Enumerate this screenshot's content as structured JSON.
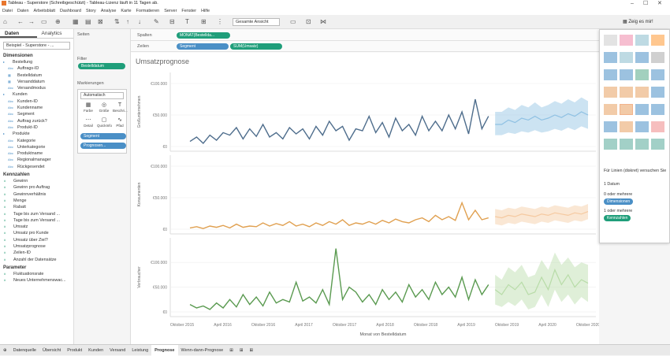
{
  "window": {
    "title": "Tableau - Superstore (Schreibgeschützt) - Tableau-Lizenz läuft in 11 Tagen ab."
  },
  "menu": [
    "Datei",
    "Daten",
    "Arbeitsblatt",
    "Dashboard",
    "Story",
    "Analyse",
    "Karte",
    "Formatieren",
    "Server",
    "Fenster",
    "Hilfe"
  ],
  "toolbar": {
    "view_select": "Gesamte Ansicht",
    "show_me": "Zeig es mir!"
  },
  "left_panel": {
    "tab_data": "Daten",
    "tab_analytics": "Analytics",
    "datasource": "Beispiel - Superstore - ...",
    "dimensions_header": "Dimensionen",
    "dimensions": [
      {
        "type": "folder",
        "label": "Bestellung"
      },
      {
        "type": "abc",
        "label": "Auftrags-ID"
      },
      {
        "type": "date",
        "label": "Bestelldatum"
      },
      {
        "type": "date",
        "label": "Versanddatum"
      },
      {
        "type": "abc",
        "label": "Versandmodus"
      },
      {
        "type": "folder",
        "label": "Kunden"
      },
      {
        "type": "abc",
        "label": "Kunden-ID"
      },
      {
        "type": "abc",
        "label": "Kundenname"
      },
      {
        "type": "abc",
        "label": "Segment"
      },
      {
        "type": "abc",
        "label": "Auftrag zurück?"
      },
      {
        "type": "abc",
        "label": "Produkt-ID"
      },
      {
        "type": "folder",
        "label": "Produkte"
      },
      {
        "type": "abc",
        "label": "Kategorie"
      },
      {
        "type": "abc",
        "label": "Unterkategorie"
      },
      {
        "type": "abc",
        "label": "Produktname"
      },
      {
        "type": "abc",
        "label": "Regionalmanager"
      },
      {
        "type": "abc",
        "label": "Rückgesendet"
      }
    ],
    "measures_header": "Kennzahlen",
    "measures": [
      "Gewinn",
      "Gewinn pro Auftrag",
      "Gewinnverhältnis",
      "Menge",
      "Rabatt",
      "Tage bis zum Versand ...",
      "Tage bis zum Versand ...",
      "Umsatz",
      "Umsatz pro Kunde",
      "Umsatz über Ziel?",
      "Umsatzprognose",
      "Zeilen-ID",
      "Anzahl der Datensätze"
    ],
    "parameters_header": "Parameter",
    "parameters": [
      "Fluktuationsrate",
      "Neues Unternehmenswac..."
    ]
  },
  "cards": {
    "pages": "Seiten",
    "filters": "Filter",
    "filter_pill": "Bestelldatum",
    "marks": "Markierungen",
    "mark_type": "Automatisch",
    "mark_buttons": [
      {
        "glyph": "▦",
        "label": "Farbe"
      },
      {
        "glyph": "◎",
        "label": "Größe"
      },
      {
        "glyph": "T",
        "label": "Beschri..."
      },
      {
        "glyph": "⋯",
        "label": "Detail"
      },
      {
        "glyph": "▢",
        "label": "QuickInfo"
      },
      {
        "glyph": "∿",
        "label": "Pfad"
      }
    ],
    "mark_pill_1": "Segment",
    "mark_pill_2": "Prognosen..."
  },
  "shelves": {
    "columns_label": "Spalten",
    "rows_label": "Zeilen",
    "columns_pill": "MONAT(Bestellda...",
    "rows_pill_1": "Segment",
    "rows_pill_2": "SUM(Umsatz)"
  },
  "viz": {
    "title": "Umsatzprognose",
    "x_title": "Monat von Bestelldatum"
  },
  "chart_data": {
    "type": "line",
    "title": "Umsatzprognose",
    "xlabel": "Monat von Bestelldatum",
    "x_ticks": [
      "Oktober 2015",
      "April 2016",
      "Oktober 2016",
      "April 2017",
      "Oktober 2017",
      "April 2018",
      "Oktober 2018",
      "April 2019",
      "Oktober 2019",
      "April 2020",
      "Oktober 2020"
    ],
    "x_range": [
      "2015-07",
      "2020-12"
    ],
    "panels": [
      {
        "ylabel": "Großunternehmen",
        "y_ticks": [
          "€100.000",
          "€50.000",
          "€0"
        ],
        "ylim": [
          0,
          110000
        ],
        "color": "#4e6d8c",
        "forecast_color": "#8fc1e3",
        "actual": [
          8000,
          15000,
          5000,
          18000,
          10000,
          22000,
          18000,
          30000,
          12000,
          28000,
          16000,
          35000,
          15000,
          22000,
          12000,
          30000,
          20000,
          28000,
          12000,
          32000,
          18000,
          40000,
          25000,
          32000,
          10000,
          28000,
          25000,
          48000,
          22000,
          38000,
          15000,
          45000,
          25000,
          35000,
          18000,
          48000,
          25000,
          40000,
          25000,
          50000,
          28000,
          55000,
          20000,
          75000,
          28000,
          48000
        ],
        "forecast": [
          35000,
          35000,
          42000,
          38000,
          45000,
          42000,
          48000,
          42000,
          45000,
          50000,
          46000,
          52000,
          48000,
          55000,
          50000
        ],
        "forecast_lower": [
          18000,
          18000,
          22000,
          20000,
          24000,
          22000,
          26000,
          22000,
          24000,
          28000,
          25000,
          30000,
          26000,
          32000,
          28000
        ],
        "forecast_upper": [
          55000,
          55000,
          62000,
          58000,
          66000,
          62000,
          70000,
          62000,
          66000,
          72000,
          68000,
          75000,
          70000,
          78000,
          72000
        ]
      },
      {
        "ylabel": "Konsumenten",
        "y_ticks": [
          "€100.000",
          "€50.000",
          "€0"
        ],
        "ylim": [
          0,
          110000
        ],
        "color": "#e0a050",
        "forecast_color": "#f5c9a0",
        "actual": [
          2000,
          4000,
          1000,
          5000,
          3000,
          6000,
          2000,
          8000,
          3000,
          5000,
          4000,
          10000,
          5000,
          9000,
          6000,
          12000,
          5000,
          8000,
          4000,
          10000,
          6000,
          12000,
          8000,
          15000,
          6000,
          10000,
          8000,
          12000,
          8000,
          14000,
          10000,
          16000,
          12000,
          10000,
          15000,
          18000,
          12000,
          22000,
          15000,
          20000,
          14000,
          42000,
          15000,
          30000,
          15000,
          18000
        ],
        "forecast": [
          20000,
          18000,
          22000,
          20000,
          24000,
          22000,
          20000,
          24000,
          22000,
          26000,
          24000,
          22000,
          26000,
          24000,
          28000
        ],
        "forecast_lower": [
          8000,
          6000,
          10000,
          8000,
          12000,
          10000,
          8000,
          12000,
          10000,
          14000,
          12000,
          10000,
          14000,
          12000,
          16000
        ],
        "forecast_upper": [
          32000,
          30000,
          34000,
          32000,
          36000,
          34000,
          32000,
          36000,
          34000,
          38000,
          36000,
          34000,
          38000,
          36000,
          40000
        ]
      },
      {
        "ylabel": "Verbraucher",
        "y_ticks": [
          "€100.000",
          "€50.000",
          "€0"
        ],
        "ylim": [
          0,
          140000
        ],
        "color": "#5a9a50",
        "forecast_color": "#b8dca8",
        "actual": [
          15000,
          8000,
          12000,
          5000,
          18000,
          8000,
          25000,
          10000,
          35000,
          15000,
          30000,
          12000,
          40000,
          18000,
          25000,
          20000,
          60000,
          22000,
          30000,
          18000,
          45000,
          15000,
          128000,
          25000,
          50000,
          40000,
          20000,
          35000,
          15000,
          45000,
          25000,
          40000,
          20000,
          55000,
          30000,
          45000,
          25000,
          60000,
          35000,
          50000,
          30000,
          70000,
          25000,
          65000,
          35000,
          55000
        ],
        "forecast": [
          45000,
          35000,
          55000,
          45000,
          60000,
          35000,
          40000,
          70000,
          45000,
          85000,
          55000,
          75000,
          50000,
          65000,
          58000
        ],
        "forecast_lower": [
          15000,
          10000,
          20000,
          12000,
          25000,
          5000,
          10000,
          35000,
          10000,
          45000,
          20000,
          35000,
          15000,
          30000,
          20000
        ],
        "forecast_upper": [
          75000,
          65000,
          90000,
          80000,
          95000,
          70000,
          75000,
          105000,
          85000,
          120000,
          95000,
          110000,
          90000,
          100000,
          95000
        ]
      }
    ]
  },
  "show_me": {
    "hint_line1": "Für Linien (diskret) versuchen Sie",
    "hint_date": "1 Datum",
    "hint_or1": "0 oder mehrere",
    "hint_dim": "Dimensionen",
    "hint_or2": "1 oder mehrere",
    "hint_meas": "Kennzahlen"
  },
  "sheet_tabs": [
    "Datenquelle",
    "Übersicht",
    "Produkt",
    "Kunden",
    "Versand",
    "Leistung",
    "Prognose",
    "Wenn-dann-Prognose"
  ],
  "active_sheet": "Prognose"
}
